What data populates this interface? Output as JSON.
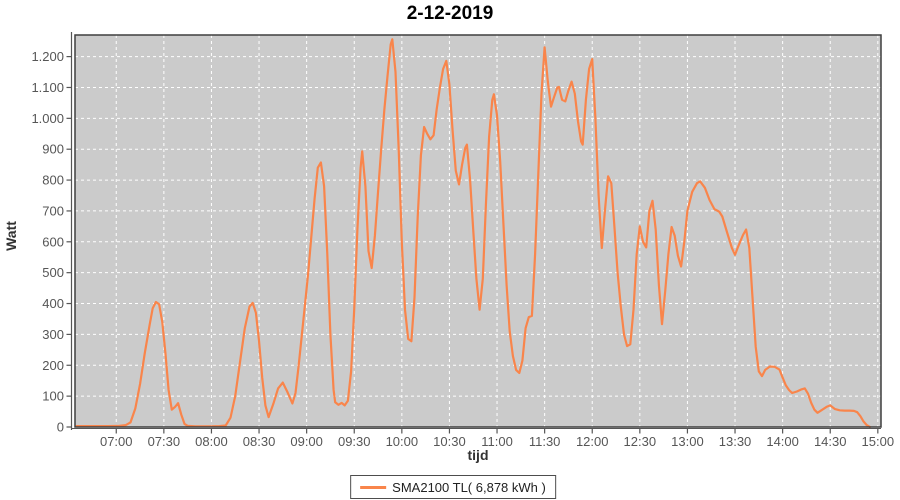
{
  "title": "2-12-2019",
  "y_axis_title": "Watt",
  "x_axis_title": "tijd",
  "legend": {
    "label": "SMA2100 TL( 6,878 kWh )"
  },
  "colors": {
    "page_bg": "#FFFFFF",
    "plot_bg": "#CBCBCB",
    "grid": "#FFFFFF",
    "series": "#F9854B",
    "plot_border": "#3F3F3F",
    "axis": "#555555",
    "tick_label": "#565656"
  },
  "chart_data": {
    "type": "line",
    "title": "2-12-2019",
    "xlabel": "tijd",
    "ylabel": "Watt",
    "legend_position": "bottom-center",
    "grid": "white dashed gridlines on gray plot background",
    "x_ticks": [
      "07:00",
      "07:30",
      "08:00",
      "08:30",
      "09:00",
      "09:30",
      "10:00",
      "10:30",
      "11:00",
      "11:30",
      "12:00",
      "12:30",
      "13:00",
      "13:30",
      "14:00",
      "14:30",
      "15:00"
    ],
    "y_ticks": {
      "labels": [
        "0",
        "100",
        "200",
        "300",
        "400",
        "500",
        "600",
        "700",
        "800",
        "900",
        "1.000",
        "1.100",
        "1.200"
      ],
      "values": [
        0,
        100,
        200,
        300,
        400,
        500,
        600,
        700,
        800,
        900,
        1000,
        1100,
        1200
      ]
    },
    "xlim": [
      "06:34",
      "15:02"
    ],
    "ylim": [
      0,
      1270
    ],
    "series": [
      {
        "name": "SMA2100 TL( 6,878 kWh )",
        "color": "#F9854B",
        "points": [
          [
            "06:35",
            3
          ],
          [
            "06:45",
            3
          ],
          [
            "06:55",
            3
          ],
          [
            "07:02",
            4
          ],
          [
            "07:06",
            6
          ],
          [
            "07:09",
            15
          ],
          [
            "07:12",
            60
          ],
          [
            "07:15",
            140
          ],
          [
            "07:18",
            240
          ],
          [
            "07:21",
            330
          ],
          [
            "07:23",
            385
          ],
          [
            "07:25",
            405
          ],
          [
            "07:27",
            398
          ],
          [
            "07:29",
            340
          ],
          [
            "07:31",
            240
          ],
          [
            "07:33",
            120
          ],
          [
            "07:35",
            56
          ],
          [
            "07:37",
            65
          ],
          [
            "07:39",
            77
          ],
          [
            "07:41",
            40
          ],
          [
            "07:43",
            10
          ],
          [
            "07:45",
            4
          ],
          [
            "07:50",
            2
          ],
          [
            "07:55",
            2
          ],
          [
            "08:00",
            2
          ],
          [
            "08:05",
            3
          ],
          [
            "08:09",
            5
          ],
          [
            "08:12",
            30
          ],
          [
            "08:15",
            100
          ],
          [
            "08:18",
            210
          ],
          [
            "08:21",
            320
          ],
          [
            "08:24",
            390
          ],
          [
            "08:26",
            402
          ],
          [
            "08:28",
            370
          ],
          [
            "08:30",
            280
          ],
          [
            "08:32",
            160
          ],
          [
            "08:34",
            70
          ],
          [
            "08:36",
            32
          ],
          [
            "08:39",
            75
          ],
          [
            "08:42",
            125
          ],
          [
            "08:45",
            144
          ],
          [
            "08:48",
            112
          ],
          [
            "08:51",
            76
          ],
          [
            "08:53",
            110
          ],
          [
            "08:55",
            200
          ],
          [
            "08:57",
            300
          ],
          [
            "08:59",
            400
          ],
          [
            "09:01",
            500
          ],
          [
            "09:03",
            620
          ],
          [
            "09:05",
            740
          ],
          [
            "09:07",
            840
          ],
          [
            "09:09",
            857
          ],
          [
            "09:11",
            780
          ],
          [
            "09:13",
            560
          ],
          [
            "09:15",
            300
          ],
          [
            "09:17",
            120
          ],
          [
            "09:18",
            80
          ],
          [
            "09:20",
            72
          ],
          [
            "09:22",
            78
          ],
          [
            "09:24",
            70
          ],
          [
            "09:26",
            85
          ],
          [
            "09:28",
            180
          ],
          [
            "09:30",
            380
          ],
          [
            "09:32",
            640
          ],
          [
            "09:34",
            840
          ],
          [
            "09:35",
            893
          ],
          [
            "09:37",
            780
          ],
          [
            "09:39",
            570
          ],
          [
            "09:41",
            515
          ],
          [
            "09:43",
            620
          ],
          [
            "09:45",
            760
          ],
          [
            "09:47",
            900
          ],
          [
            "09:49",
            1030
          ],
          [
            "09:51",
            1140
          ],
          [
            "09:53",
            1240
          ],
          [
            "09:54",
            1256
          ],
          [
            "09:56",
            1150
          ],
          [
            "09:58",
            900
          ],
          [
            "10:00",
            600
          ],
          [
            "10:02",
            380
          ],
          [
            "10:04",
            285
          ],
          [
            "10:06",
            278
          ],
          [
            "10:08",
            420
          ],
          [
            "10:10",
            680
          ],
          [
            "10:12",
            880
          ],
          [
            "10:14",
            972
          ],
          [
            "10:16",
            950
          ],
          [
            "10:18",
            932
          ],
          [
            "10:20",
            945
          ],
          [
            "10:22",
            1030
          ],
          [
            "10:24",
            1100
          ],
          [
            "10:26",
            1160
          ],
          [
            "10:28",
            1186
          ],
          [
            "10:30",
            1110
          ],
          [
            "10:32",
            960
          ],
          [
            "10:34",
            830
          ],
          [
            "10:36",
            786
          ],
          [
            "10:38",
            850
          ],
          [
            "10:40",
            905
          ],
          [
            "10:41",
            915
          ],
          [
            "10:43",
            800
          ],
          [
            "10:45",
            640
          ],
          [
            "10:47",
            480
          ],
          [
            "10:49",
            380
          ],
          [
            "10:51",
            480
          ],
          [
            "10:53",
            720
          ],
          [
            "10:55",
            940
          ],
          [
            "10:57",
            1060
          ],
          [
            "10:58",
            1078
          ],
          [
            "11:00",
            1010
          ],
          [
            "11:02",
            860
          ],
          [
            "11:04",
            660
          ],
          [
            "11:06",
            460
          ],
          [
            "11:08",
            310
          ],
          [
            "11:10",
            230
          ],
          [
            "11:12",
            185
          ],
          [
            "11:14",
            175
          ],
          [
            "11:16",
            215
          ],
          [
            "11:18",
            320
          ],
          [
            "11:20",
            356
          ],
          [
            "11:22",
            360
          ],
          [
            "11:24",
            560
          ],
          [
            "11:26",
            820
          ],
          [
            "11:28",
            1080
          ],
          [
            "11:30",
            1230
          ],
          [
            "11:32",
            1120
          ],
          [
            "11:34",
            1038
          ],
          [
            "11:36",
            1070
          ],
          [
            "11:38",
            1100
          ],
          [
            "11:39",
            1102
          ],
          [
            "11:41",
            1060
          ],
          [
            "11:43",
            1055
          ],
          [
            "11:45",
            1090
          ],
          [
            "11:47",
            1119
          ],
          [
            "11:49",
            1080
          ],
          [
            "11:51",
            990
          ],
          [
            "11:53",
            925
          ],
          [
            "11:54",
            915
          ],
          [
            "11:56",
            1060
          ],
          [
            "11:58",
            1160
          ],
          [
            "12:00",
            1192
          ],
          [
            "12:02",
            1000
          ],
          [
            "12:04",
            750
          ],
          [
            "12:06",
            580
          ],
          [
            "12:08",
            700
          ],
          [
            "12:10",
            812
          ],
          [
            "12:12",
            790
          ],
          [
            "12:14",
            650
          ],
          [
            "12:16",
            500
          ],
          [
            "12:18",
            390
          ],
          [
            "12:20",
            300
          ],
          [
            "12:22",
            262
          ],
          [
            "12:24",
            268
          ],
          [
            "12:26",
            380
          ],
          [
            "12:28",
            560
          ],
          [
            "12:30",
            650
          ],
          [
            "12:32",
            600
          ],
          [
            "12:34",
            582
          ],
          [
            "12:36",
            700
          ],
          [
            "12:38",
            733
          ],
          [
            "12:40",
            640
          ],
          [
            "12:42",
            460
          ],
          [
            "12:44",
            333
          ],
          [
            "12:46",
            440
          ],
          [
            "12:48",
            560
          ],
          [
            "12:50",
            648
          ],
          [
            "12:52",
            620
          ],
          [
            "12:54",
            555
          ],
          [
            "12:56",
            520
          ],
          [
            "12:58",
            600
          ],
          [
            "13:00",
            700
          ],
          [
            "13:03",
            762
          ],
          [
            "13:06",
            790
          ],
          [
            "13:08",
            796
          ],
          [
            "13:11",
            775
          ],
          [
            "13:14",
            735
          ],
          [
            "13:17",
            706
          ],
          [
            "13:20",
            698
          ],
          [
            "13:22",
            682
          ],
          [
            "13:25",
            630
          ],
          [
            "13:28",
            580
          ],
          [
            "13:30",
            558
          ],
          [
            "13:32",
            585
          ],
          [
            "13:35",
            622
          ],
          [
            "13:37",
            640
          ],
          [
            "13:39",
            580
          ],
          [
            "13:41",
            420
          ],
          [
            "13:43",
            260
          ],
          [
            "13:45",
            180
          ],
          [
            "13:47",
            165
          ],
          [
            "13:49",
            185
          ],
          [
            "13:52",
            196
          ],
          [
            "13:55",
            195
          ],
          [
            "13:58",
            186
          ],
          [
            "14:00",
            160
          ],
          [
            "14:02",
            135
          ],
          [
            "14:04",
            120
          ],
          [
            "14:06",
            110
          ],
          [
            "14:09",
            115
          ],
          [
            "14:12",
            122
          ],
          [
            "14:14",
            125
          ],
          [
            "14:16",
            108
          ],
          [
            "14:18",
            78
          ],
          [
            "14:20",
            56
          ],
          [
            "14:22",
            46
          ],
          [
            "14:25",
            56
          ],
          [
            "14:28",
            66
          ],
          [
            "14:30",
            70
          ],
          [
            "14:33",
            58
          ],
          [
            "14:36",
            54
          ],
          [
            "14:39",
            53
          ],
          [
            "14:42",
            53
          ],
          [
            "14:45",
            52
          ],
          [
            "14:47",
            48
          ],
          [
            "14:49",
            35
          ],
          [
            "14:51",
            18
          ],
          [
            "14:53",
            6
          ],
          [
            "14:55",
            0
          ]
        ]
      }
    ]
  }
}
